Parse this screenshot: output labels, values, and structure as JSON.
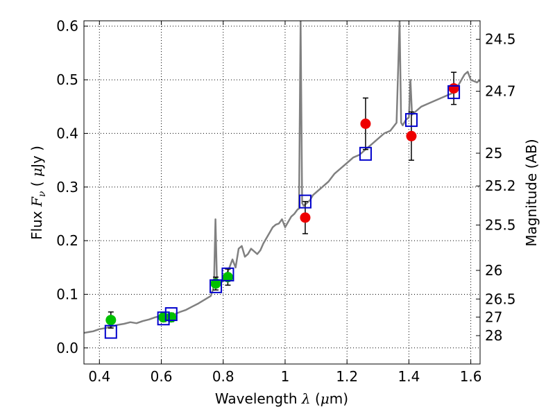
{
  "chart_data": {
    "type": "scatter",
    "xlabel": "Wavelength  λ (μm)",
    "ylabel": "Flux  F_ν  ( μJy )",
    "ylabel_parts": {
      "pre": "Flux  ",
      "sym": "F",
      "sub": "ν",
      "mid": "  ( ",
      "mu": "μ",
      "post": "Jy )"
    },
    "xlabel_parts": {
      "pre": "Wavelength  ",
      "sym": "λ",
      "mid": " (",
      "mu": "μ",
      "post": "m)"
    },
    "y2label": "Magnitude (AB)",
    "xlim": [
      0.35,
      1.63
    ],
    "ylim": [
      -0.03,
      0.61
    ],
    "grid": true,
    "x_ticks": [
      {
        "value": 0.4,
        "label": "0.4"
      },
      {
        "value": 0.6,
        "label": "0.6"
      },
      {
        "value": 0.8,
        "label": "0.8"
      },
      {
        "value": 1.0,
        "label": "1"
      },
      {
        "value": 1.2,
        "label": "1.2"
      },
      {
        "value": 1.4,
        "label": "1.4"
      },
      {
        "value": 1.6,
        "label": "1.6"
      }
    ],
    "y_ticks": [
      {
        "value": 0.0,
        "label": "0.0"
      },
      {
        "value": 0.1,
        "label": "0.1"
      },
      {
        "value": 0.2,
        "label": "0.2"
      },
      {
        "value": 0.3,
        "label": "0.3"
      },
      {
        "value": 0.4,
        "label": "0.4"
      },
      {
        "value": 0.5,
        "label": "0.5"
      },
      {
        "value": 0.6,
        "label": "0.6"
      }
    ],
    "mag_ticks": [
      {
        "mag": 24.5,
        "label": "24.5"
      },
      {
        "mag": 24.7,
        "label": "24.7"
      },
      {
        "mag": 25,
        "label": "25"
      },
      {
        "mag": 25.2,
        "label": "25.2"
      },
      {
        "mag": 25.5,
        "label": "25.5"
      },
      {
        "mag": 26,
        "label": "26"
      },
      {
        "mag": 26.5,
        "label": "26.5"
      },
      {
        "mag": 27,
        "label": "27"
      },
      {
        "mag": 28,
        "label": "28"
      }
    ],
    "series": [
      {
        "kind": "line",
        "color": "#808080",
        "points": [
          [
            0.35,
            0.028
          ],
          [
            0.38,
            0.031
          ],
          [
            0.4,
            0.035
          ],
          [
            0.42,
            0.037
          ],
          [
            0.44,
            0.04
          ],
          [
            0.46,
            0.043
          ],
          [
            0.48,
            0.045
          ],
          [
            0.5,
            0.048
          ],
          [
            0.52,
            0.046
          ],
          [
            0.54,
            0.05
          ],
          [
            0.56,
            0.053
          ],
          [
            0.58,
            0.057
          ],
          [
            0.6,
            0.06
          ],
          [
            0.62,
            0.058
          ],
          [
            0.64,
            0.062
          ],
          [
            0.66,
            0.067
          ],
          [
            0.68,
            0.071
          ],
          [
            0.7,
            0.077
          ],
          [
            0.72,
            0.083
          ],
          [
            0.74,
            0.09
          ],
          [
            0.76,
            0.097
          ],
          [
            0.77,
            0.115
          ],
          [
            0.775,
            0.24
          ],
          [
            0.78,
            0.12
          ],
          [
            0.79,
            0.117
          ],
          [
            0.8,
            0.128
          ],
          [
            0.81,
            0.135
          ],
          [
            0.82,
            0.15
          ],
          [
            0.83,
            0.165
          ],
          [
            0.84,
            0.15
          ],
          [
            0.85,
            0.185
          ],
          [
            0.86,
            0.19
          ],
          [
            0.87,
            0.17
          ],
          [
            0.88,
            0.175
          ],
          [
            0.89,
            0.185
          ],
          [
            0.9,
            0.18
          ],
          [
            0.91,
            0.175
          ],
          [
            0.92,
            0.182
          ],
          [
            0.93,
            0.195
          ],
          [
            0.94,
            0.205
          ],
          [
            0.95,
            0.215
          ],
          [
            0.96,
            0.225
          ],
          [
            0.97,
            0.23
          ],
          [
            0.98,
            0.232
          ],
          [
            0.99,
            0.24
          ],
          [
            1.0,
            0.225
          ],
          [
            1.01,
            0.235
          ],
          [
            1.02,
            0.245
          ],
          [
            1.03,
            0.25
          ],
          [
            1.04,
            0.258
          ],
          [
            1.045,
            0.26
          ],
          [
            1.05,
            0.61
          ],
          [
            1.055,
            0.27
          ],
          [
            1.06,
            0.265
          ],
          [
            1.07,
            0.27
          ],
          [
            1.08,
            0.275
          ],
          [
            1.09,
            0.285
          ],
          [
            1.1,
            0.29
          ],
          [
            1.12,
            0.3
          ],
          [
            1.14,
            0.31
          ],
          [
            1.16,
            0.325
          ],
          [
            1.18,
            0.335
          ],
          [
            1.2,
            0.345
          ],
          [
            1.22,
            0.355
          ],
          [
            1.24,
            0.36
          ],
          [
            1.26,
            0.37
          ],
          [
            1.28,
            0.38
          ],
          [
            1.3,
            0.39
          ],
          [
            1.32,
            0.4
          ],
          [
            1.34,
            0.405
          ],
          [
            1.36,
            0.42
          ],
          [
            1.37,
            0.61
          ],
          [
            1.375,
            0.42
          ],
          [
            1.38,
            0.415
          ],
          [
            1.39,
            0.425
          ],
          [
            1.4,
            0.43
          ],
          [
            1.405,
            0.5
          ],
          [
            1.41,
            0.435
          ],
          [
            1.42,
            0.44
          ],
          [
            1.44,
            0.45
          ],
          [
            1.46,
            0.455
          ],
          [
            1.48,
            0.46
          ],
          [
            1.5,
            0.465
          ],
          [
            1.52,
            0.47
          ],
          [
            1.54,
            0.475
          ],
          [
            1.56,
            0.49
          ],
          [
            1.58,
            0.51
          ],
          [
            1.59,
            0.515
          ],
          [
            1.6,
            0.5
          ],
          [
            1.62,
            0.495
          ],
          [
            1.63,
            0.5
          ]
        ]
      },
      {
        "kind": "points",
        "marker": "circle",
        "color": "#00c000",
        "points": [
          {
            "x": 0.437,
            "y": 0.052,
            "err": 0.015
          },
          {
            "x": 0.607,
            "y": 0.057,
            "err": 0.008
          },
          {
            "x": 0.632,
            "y": 0.057,
            "err": 0.008
          },
          {
            "x": 0.776,
            "y": 0.12,
            "err": 0.012
          },
          {
            "x": 0.815,
            "y": 0.132,
            "err": 0.015
          }
        ]
      },
      {
        "kind": "points",
        "marker": "circle",
        "color": "#ee0000",
        "points": [
          {
            "x": 1.065,
            "y": 0.243,
            "err": 0.03
          },
          {
            "x": 1.26,
            "y": 0.418,
            "err": 0.048
          },
          {
            "x": 1.408,
            "y": 0.395,
            "err": 0.045
          },
          {
            "x": 1.545,
            "y": 0.484,
            "err": 0.03
          }
        ]
      },
      {
        "kind": "points",
        "marker": "square-open",
        "color": "#0000cc",
        "points": [
          {
            "x": 0.437,
            "y": 0.03
          },
          {
            "x": 0.607,
            "y": 0.055
          },
          {
            "x": 0.632,
            "y": 0.063
          },
          {
            "x": 0.776,
            "y": 0.115
          },
          {
            "x": 0.815,
            "y": 0.137
          },
          {
            "x": 1.065,
            "y": 0.273
          },
          {
            "x": 1.26,
            "y": 0.362
          },
          {
            "x": 1.408,
            "y": 0.425
          },
          {
            "x": 1.545,
            "y": 0.477
          }
        ]
      }
    ]
  }
}
